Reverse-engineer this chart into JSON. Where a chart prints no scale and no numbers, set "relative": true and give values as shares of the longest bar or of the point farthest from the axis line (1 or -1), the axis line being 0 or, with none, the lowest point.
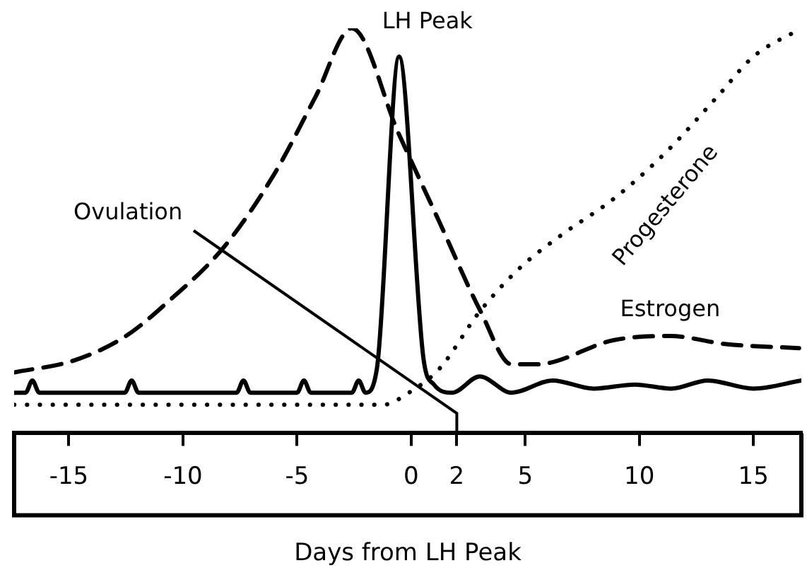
{
  "chart_data": {
    "type": "line",
    "relative": true,
    "xlabel": "Days from LH Peak",
    "xlim": [
      -17.4,
      17.1
    ],
    "xticks": [
      -15,
      -10,
      -5,
      0,
      2,
      5,
      10,
      15
    ],
    "grid": false,
    "legend": false,
    "marker": "none",
    "annotations": [
      {
        "text": "LH Peak",
        "x": -0.53,
        "y": 0.93
      },
      "Ovulation"
    ],
    "series": [
      {
        "name": "Estrogen",
        "color": "#000000",
        "line_style": "dashed",
        "x": [
          -17.4,
          -14.75,
          -12.5,
          -10.75,
          -8.2,
          -6.0,
          -4.2,
          -2.6,
          -0.55,
          1.25,
          3.05,
          4.4,
          5.5,
          8.9,
          11.35,
          13.8,
          17.0
        ],
        "values": [
          0.15,
          0.18,
          0.24,
          0.32,
          0.46,
          0.64,
          0.83,
          1.0,
          0.74,
          0.52,
          0.3,
          0.17,
          0.17,
          0.23,
          0.24,
          0.22,
          0.21
        ]
      },
      {
        "color": "#000000",
        "line_style": "solid",
        "x": [
          -17.4,
          -16.9,
          -16.6,
          -16.3,
          -12.55,
          -12.25,
          -11.95,
          -7.65,
          -7.35,
          -7.05,
          -5.0,
          -4.7,
          -4.4,
          -2.6,
          -2.3,
          -2.0,
          -1.5,
          -0.53,
          0.55,
          1.0,
          1.8,
          3.0,
          4.4,
          6.2,
          8.0,
          9.8,
          11.4,
          13.0,
          15.0,
          17.1
        ],
        "values": [
          0.1,
          0.1,
          0.13,
          0.1,
          0.1,
          0.13,
          0.1,
          0.1,
          0.13,
          0.1,
          0.1,
          0.13,
          0.1,
          0.1,
          0.13,
          0.1,
          0.16,
          0.93,
          0.18,
          0.12,
          0.1,
          0.14,
          0.1,
          0.13,
          0.11,
          0.12,
          0.11,
          0.13,
          0.11,
          0.13
        ]
      },
      {
        "name": "Progesterone",
        "color": "#000000",
        "line_style": "dotted",
        "x": [
          -17.4,
          -1.25,
          -0.1,
          1.25,
          3.0,
          4.8,
          6.6,
          8.9,
          11.1,
          13.4,
          15.0,
          17.1
        ],
        "values": [
          0.07,
          0.07,
          0.1,
          0.16,
          0.3,
          0.41,
          0.49,
          0.58,
          0.69,
          0.83,
          0.93,
          1.0
        ]
      }
    ]
  }
}
